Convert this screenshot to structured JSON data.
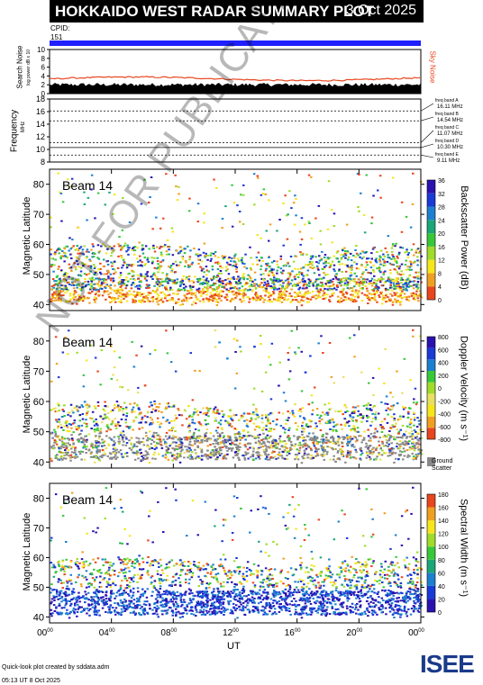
{
  "header": {
    "title": "HOKKAIDO WEST RADAR SUMMARY PLOT",
    "date": "3 Oct 2025",
    "cpid_label": "CPID:",
    "cpid_value": "151"
  },
  "noise_panel": {
    "ylabel": "Search Noise",
    "ylabel_sub": "log power dB x 10",
    "yticks": [
      "0",
      "2",
      "4",
      "6",
      "8",
      "10"
    ],
    "right_label": "Sky Noise",
    "sky_color": "#e8461e"
  },
  "freq_panel": {
    "ylabel": "Frequency",
    "unit": "MHz",
    "yticks": [
      "8",
      "10",
      "12",
      "14",
      "16",
      "18"
    ],
    "bands": [
      "freq band A",
      "freq band B",
      "freq band C",
      "freq band D",
      "freq band E"
    ],
    "band_values": [
      "16.11 MHz",
      "14.54 MHz",
      "11.07 MHz",
      "10.30 MHz",
      "9.11 MHz"
    ]
  },
  "panels": [
    {
      "beam_label": "Beam 14",
      "ylabel": "Magnetic Latitude",
      "yticks": [
        "40",
        "50",
        "60",
        "70",
        "80"
      ],
      "colorbar_label": "Backscatter Power (dB)",
      "colorbar_ticks": [
        "0",
        "4",
        "8",
        "12",
        "16",
        "20",
        "24",
        "28",
        "32",
        "36"
      ],
      "colors": [
        "#e8461e",
        "#f0a020",
        "#f6e61c",
        "#a0dc2a",
        "#37c83a",
        "#1aa878",
        "#1c80d0",
        "#1a3ad8",
        "#2a12b0"
      ]
    },
    {
      "beam_label": "Beam 14",
      "ylabel": "Magnetic Latitude",
      "yticks": [
        "40",
        "50",
        "60",
        "70",
        "80"
      ],
      "colorbar_label": "Doppler Velocity (m s⁻¹)",
      "colorbar_ticks": [
        "-800",
        "-600",
        "-400",
        "-200",
        "0",
        "200",
        "400",
        "600",
        "800"
      ],
      "ground_label": "Ground",
      "ground_label2": "Scatter",
      "colors": [
        "#e8461e",
        "#f0a020",
        "#f6e61c",
        "#e8e060",
        "#a0dc2a",
        "#37c83a",
        "#1c80d0",
        "#1a3ad8",
        "#2a12b0"
      ]
    },
    {
      "beam_label": "Beam 14",
      "ylabel": "Magnetic Latitude",
      "yticks": [
        "40",
        "50",
        "60",
        "70",
        "80"
      ],
      "colorbar_label": "Spectral Width (m s⁻¹)",
      "colorbar_ticks": [
        "0",
        "20",
        "40",
        "60",
        "80",
        "100",
        "120",
        "140",
        "160",
        "180"
      ],
      "colors": [
        "#2a12b0",
        "#1a3ad8",
        "#1c80d0",
        "#1aa878",
        "#37c83a",
        "#a0dc2a",
        "#f6e61c",
        "#f0a020",
        "#e8461e"
      ]
    }
  ],
  "xaxis": {
    "ticks": [
      "00",
      "04",
      "08",
      "12",
      "16",
      "20",
      "00"
    ],
    "tick_sup": "00",
    "label": "UT"
  },
  "watermark": "NOT FOR PUBLICATION",
  "footer": {
    "line1": "Quick-look plot created by sddata.adm",
    "line2": "05:13 UT  8 Oct 2025",
    "logo": "ISEE"
  },
  "chart_data": {
    "type": "heatmap",
    "x": {
      "unit": "UT hour",
      "range": [
        0,
        24
      ],
      "ticks": [
        0,
        4,
        8,
        12,
        16,
        20,
        24
      ]
    },
    "y": {
      "unit": "Magnetic Latitude (deg)",
      "range": [
        38,
        85
      ],
      "ticks": [
        40,
        50,
        60,
        70,
        80
      ]
    },
    "series": [
      {
        "name": "Backscatter Power (dB)",
        "range": [
          0,
          36
        ]
      },
      {
        "name": "Doppler Velocity (m s⁻¹)",
        "range": [
          -800,
          800
        ]
      },
      {
        "name": "Spectral Width (m s⁻¹)",
        "range": [
          0,
          180
        ]
      }
    ],
    "noise": {
      "name": "Sky Noise",
      "range": [
        0,
        10
      ],
      "level": 3.2
    },
    "frequency": {
      "range": [
        8,
        18
      ],
      "bands_MHz": [
        16.11,
        14.54,
        11.07,
        10.3,
        9.11
      ]
    }
  }
}
